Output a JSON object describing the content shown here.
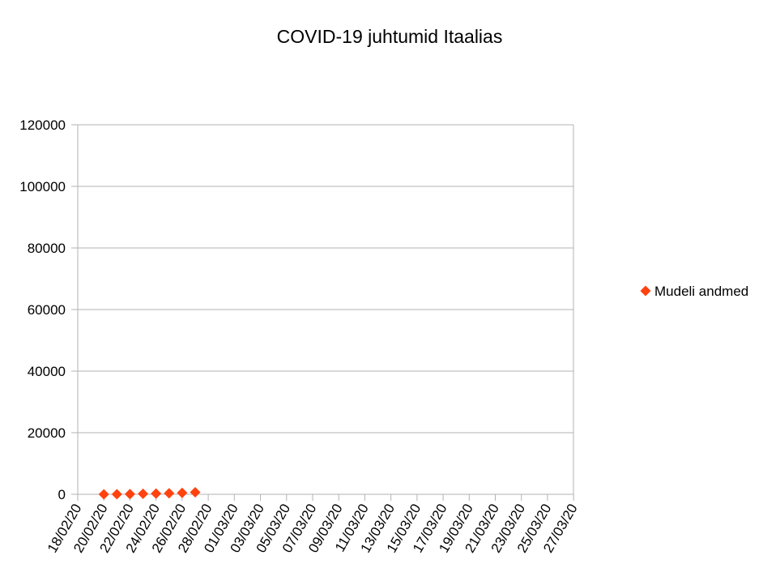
{
  "chart_data": {
    "type": "scatter",
    "title": "COVID-19 juhtumid Itaalias",
    "xlabel": "",
    "ylabel": "",
    "ylim": [
      0,
      120000
    ],
    "yticks": [
      "0",
      "20000",
      "40000",
      "60000",
      "80000",
      "100000",
      "120000"
    ],
    "xlim": [
      "18/02/20",
      "27/03/20"
    ],
    "xticks": [
      "18/02/20",
      "20/02/20",
      "22/02/20",
      "24/02/20",
      "26/02/20",
      "28/02/20",
      "01/03/20",
      "03/03/20",
      "05/03/20",
      "07/03/20",
      "09/03/20",
      "11/03/20",
      "13/03/20",
      "15/03/20",
      "17/03/20",
      "19/03/20",
      "21/03/20",
      "23/03/20",
      "25/03/20",
      "27/03/20"
    ],
    "grid": true,
    "legend_position": "right",
    "series": [
      {
        "name": "Mudeli andmed",
        "color": "#ff420e",
        "marker": "diamond",
        "points": [
          {
            "x": "20/02/20",
            "y": 3
          },
          {
            "x": "21/02/20",
            "y": 20
          },
          {
            "x": "22/02/20",
            "y": 79
          },
          {
            "x": "23/02/20",
            "y": 152
          },
          {
            "x": "24/02/20",
            "y": 229
          },
          {
            "x": "25/02/20",
            "y": 322
          },
          {
            "x": "26/02/20",
            "y": 453
          },
          {
            "x": "27/02/20",
            "y": 655
          }
        ]
      }
    ]
  }
}
